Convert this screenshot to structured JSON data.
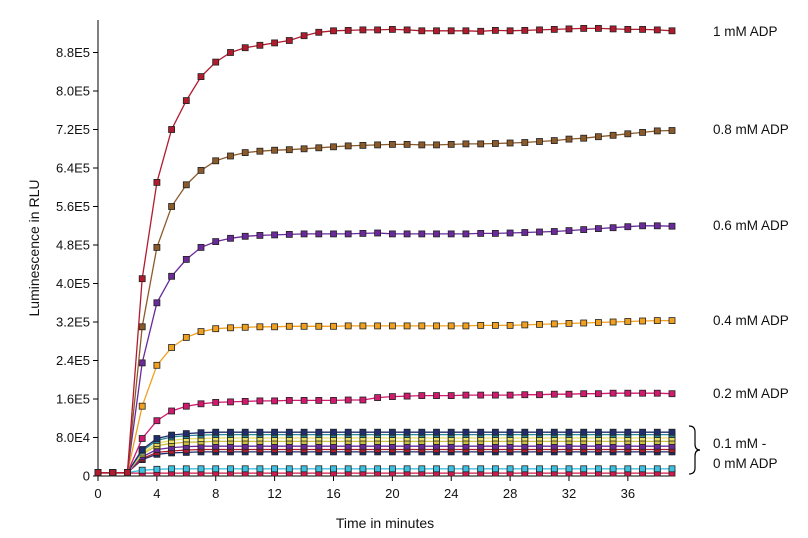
{
  "chart_data": {
    "type": "line",
    "title": "",
    "xlabel": "Time in minutes",
    "ylabel": "Luminescence in RLU",
    "xlim": [
      0,
      39
    ],
    "ylim": [
      0,
      960000
    ],
    "xticks": [
      0,
      4,
      8,
      12,
      16,
      20,
      24,
      28,
      32,
      36
    ],
    "xtick_labels": [
      "0",
      "4",
      "8",
      "12",
      "16",
      "20",
      "24",
      "28",
      "32",
      "36"
    ],
    "yticks": [
      0,
      80000,
      160000,
      240000,
      320000,
      400000,
      480000,
      560000,
      640000,
      720000,
      800000,
      880000
    ],
    "ytick_labels": [
      "0",
      "8.0E4",
      "1.6E5",
      "2.4E5",
      "3.2E5",
      "4.0E5",
      "4.8E5",
      "5.6E5",
      "6.4E5",
      "7.2E5",
      "8.0E5",
      "8.8E5"
    ],
    "grid": false,
    "marker": "square",
    "x": [
      0,
      1,
      2,
      3,
      4,
      5,
      6,
      7,
      8,
      9,
      10,
      11,
      12,
      13,
      14,
      15,
      16,
      17,
      18,
      19,
      20,
      21,
      22,
      23,
      24,
      25,
      26,
      27,
      28,
      29,
      30,
      31,
      32,
      33,
      34,
      35,
      36,
      37,
      38,
      39
    ],
    "series": [
      {
        "name": "1 mM ADP",
        "color": "#b01c2e",
        "values": [
          7000,
          7000,
          7000,
          410000,
          610000,
          720000,
          780000,
          830000,
          860000,
          880000,
          890000,
          895000,
          900000,
          905000,
          915000,
          922000,
          925000,
          926000,
          927000,
          927000,
          928000,
          927000,
          925000,
          925000,
          925000,
          925000,
          924000,
          926000,
          925000,
          926000,
          927000,
          928000,
          929000,
          930000,
          930000,
          929000,
          928000,
          928000,
          927000,
          925000
        ]
      },
      {
        "name": "0.8 mM ADP",
        "color": "#8b5a2b",
        "values": [
          7000,
          7000,
          7000,
          310000,
          475000,
          560000,
          605000,
          635000,
          655000,
          665000,
          672000,
          675000,
          677000,
          678000,
          680000,
          682000,
          684000,
          686000,
          687000,
          688000,
          689000,
          689000,
          688000,
          688000,
          689000,
          690000,
          690000,
          691000,
          692000,
          693000,
          695000,
          697000,
          700000,
          702000,
          705000,
          708000,
          711000,
          714000,
          717000,
          718000
        ]
      },
      {
        "name": "0.6 mM ADP",
        "color": "#6a2a9a",
        "values": [
          7000,
          7000,
          7000,
          235000,
          360000,
          415000,
          450000,
          475000,
          487000,
          494000,
          498000,
          500000,
          501000,
          502000,
          503000,
          503000,
          503000,
          503000,
          504000,
          505000,
          503000,
          503000,
          503000,
          503000,
          503000,
          503000,
          504000,
          504000,
          505000,
          506000,
          507000,
          508000,
          510000,
          512000,
          514000,
          516000,
          518000,
          520000,
          520000,
          519000
        ]
      },
      {
        "name": "0.4 mM ADP",
        "color": "#f0a020",
        "values": [
          7000,
          7000,
          7000,
          145000,
          230000,
          267000,
          288000,
          300000,
          306000,
          308000,
          309000,
          310000,
          310000,
          311000,
          311000,
          311000,
          311000,
          312000,
          312000,
          312000,
          312000,
          312000,
          312000,
          312000,
          312000,
          312000,
          313000,
          313000,
          313000,
          314000,
          315000,
          316000,
          317000,
          318000,
          319000,
          320000,
          321000,
          322000,
          323000,
          323000
        ]
      },
      {
        "name": "0.2 mM ADP",
        "color": "#d01a6e",
        "values": [
          7000,
          7000,
          7000,
          78000,
          115000,
          135000,
          145000,
          150000,
          153000,
          154000,
          155000,
          156000,
          156000,
          157000,
          157000,
          157000,
          157000,
          158000,
          158000,
          163000,
          165000,
          166000,
          167000,
          167000,
          167000,
          168000,
          168000,
          168000,
          168000,
          169000,
          169000,
          170000,
          170000,
          171000,
          171000,
          172000,
          172000,
          172000,
          172000,
          171000
        ]
      },
      {
        "name": "0.1 mM ADP",
        "color": "#1f2d6e",
        "values": [
          7000,
          7000,
          7000,
          55000,
          78000,
          85000,
          88000,
          90000,
          91000,
          91000,
          91000,
          91000,
          91000,
          91000,
          91000,
          91000,
          91000,
          91000,
          91000,
          91000,
          91000,
          91000,
          91000,
          91000,
          91000,
          91000,
          91000,
          91000,
          91000,
          91000,
          91000,
          91000,
          91000,
          91000,
          91000,
          91000,
          91000,
          91000,
          91000,
          91000
        ]
      },
      {
        "name": "",
        "color": "#2a8a9a",
        "values": [
          7000,
          7000,
          7000,
          52000,
          74000,
          81000,
          84000,
          85000,
          86000,
          86000,
          86000,
          86000,
          86000,
          86000,
          86000,
          86000,
          86000,
          86000,
          86000,
          86000,
          86000,
          86000,
          86000,
          86000,
          86000,
          86000,
          86000,
          86000,
          86000,
          86000,
          86000,
          86000,
          86000,
          86000,
          86000,
          86000,
          86000,
          86000,
          86000,
          86000
        ]
      },
      {
        "name": "",
        "color": "#e8e060",
        "values": [
          7000,
          7000,
          7000,
          48000,
          68000,
          74000,
          77000,
          78000,
          79000,
          79000,
          79000,
          79000,
          79000,
          79000,
          79000,
          79000,
          79000,
          79000,
          79000,
          79000,
          79000,
          79000,
          79000,
          79000,
          79000,
          79000,
          79000,
          79000,
          79000,
          79000,
          79000,
          79000,
          79000,
          79000,
          79000,
          79000,
          79000,
          79000,
          79000,
          79000
        ]
      },
      {
        "name": "",
        "color": "#cfc040",
        "values": [
          7000,
          7000,
          7000,
          45000,
          63000,
          68000,
          70000,
          71000,
          72000,
          72000,
          72000,
          72000,
          72000,
          72000,
          72000,
          72000,
          72000,
          72000,
          72000,
          72000,
          72000,
          72000,
          72000,
          72000,
          72000,
          72000,
          72000,
          72000,
          72000,
          72000,
          72000,
          72000,
          72000,
          72000,
          72000,
          72000,
          72000,
          72000,
          72000,
          72000
        ]
      },
      {
        "name": "",
        "color": "#6a2a9a",
        "values": [
          7000,
          7000,
          7000,
          40000,
          55000,
          59000,
          61000,
          62000,
          62000,
          62000,
          62000,
          62000,
          62000,
          62000,
          62000,
          62000,
          62000,
          62000,
          62000,
          62000,
          62000,
          62000,
          62000,
          62000,
          62000,
          62000,
          62000,
          62000,
          62000,
          62000,
          62000,
          62000,
          62000,
          62000,
          62000,
          62000,
          62000,
          62000,
          62000,
          62000
        ]
      },
      {
        "name": "",
        "color": "#b01c2e",
        "values": [
          7000,
          7000,
          7000,
          36000,
          49000,
          52000,
          54000,
          55000,
          55000,
          55000,
          55000,
          55000,
          55000,
          55000,
          55000,
          55000,
          55000,
          55000,
          55000,
          55000,
          55000,
          55000,
          55000,
          55000,
          55000,
          55000,
          55000,
          55000,
          55000,
          55000,
          55000,
          55000,
          55000,
          55000,
          55000,
          55000,
          55000,
          55000,
          55000,
          55000
        ]
      },
      {
        "name": "",
        "color": "#1f2d6e",
        "values": [
          7000,
          7000,
          7000,
          34000,
          45000,
          48000,
          49000,
          50000,
          50000,
          50000,
          50000,
          50000,
          50000,
          50000,
          50000,
          50000,
          50000,
          50000,
          50000,
          50000,
          50000,
          50000,
          50000,
          50000,
          50000,
          50000,
          50000,
          50000,
          50000,
          50000,
          50000,
          50000,
          50000,
          50000,
          50000,
          50000,
          50000,
          50000,
          50000,
          50000
        ]
      },
      {
        "name": "",
        "color": "#40c0e0",
        "values": [
          7000,
          7000,
          7000,
          12000,
          14000,
          15000,
          15000,
          15000,
          15000,
          15000,
          15000,
          15000,
          15000,
          15000,
          15000,
          15000,
          15000,
          15000,
          15000,
          15000,
          15000,
          15000,
          15000,
          15000,
          15000,
          15000,
          15000,
          15000,
          15000,
          15000,
          15000,
          15000,
          15000,
          15000,
          15000,
          15000,
          15000,
          15000,
          15000,
          15000
        ]
      },
      {
        "name": "0 mM ADP",
        "color": "#d01a4e",
        "values": [
          6000,
          6000,
          6000,
          6000,
          6000,
          6000,
          6000,
          6000,
          6000,
          6000,
          6000,
          6000,
          6000,
          6000,
          6000,
          6000,
          6000,
          6000,
          6000,
          6000,
          6000,
          6000,
          6000,
          6000,
          6000,
          6000,
          6000,
          6000,
          6000,
          6000,
          6000,
          6000,
          6000,
          6000,
          6000,
          6000,
          6000,
          6000,
          6000,
          6000
        ]
      }
    ],
    "labels": {
      "s1": "1 mM ADP",
      "s08": "0.8 mM ADP",
      "s06": "0.6 mM ADP",
      "s04": "0.4 mM ADP",
      "s02": "0.2 mM ADP",
      "group_line1": "0.1 mM -",
      "group_line2": "0 mM ADP"
    }
  }
}
